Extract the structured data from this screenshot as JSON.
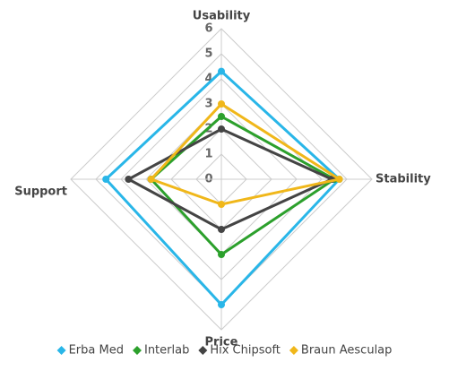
{
  "chart_data": {
    "type": "radar",
    "categories": [
      "Usability",
      "Stability",
      "Price",
      "Support"
    ],
    "series": [
      {
        "name": "Erba Med",
        "color": "#29b6e8",
        "values": [
          4.3,
          4.7,
          5,
          4.6
        ]
      },
      {
        "name": "Interlab",
        "color": "#2ca02c",
        "values": [
          2.5,
          4.5,
          3,
          2.8
        ]
      },
      {
        "name": "Hix Chipsoft",
        "color": "#444444",
        "values": [
          2,
          4.4,
          2,
          3.7
        ]
      },
      {
        "name": "Braun Aesculap",
        "color": "#f0b71a",
        "values": [
          3,
          4.7,
          1,
          2.8
        ]
      }
    ],
    "rlim": [
      0,
      6
    ],
    "rticks": [
      0,
      1,
      2,
      3,
      4,
      5,
      6
    ],
    "grid": true,
    "legend": "bottom"
  }
}
